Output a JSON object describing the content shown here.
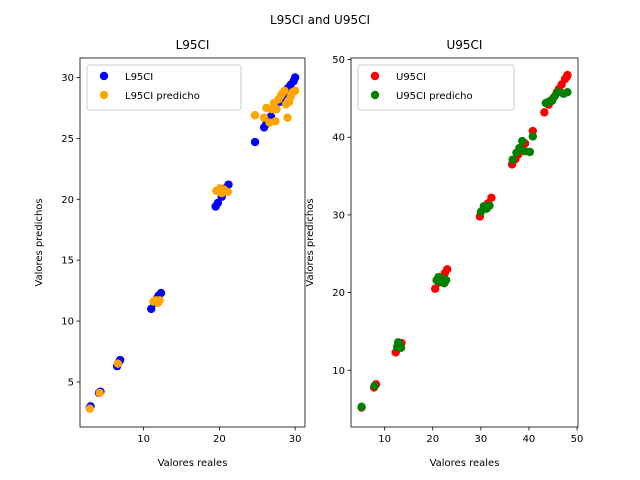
{
  "figure": {
    "suptitle": "L95CI and U95CI"
  },
  "chart_data": [
    {
      "type": "scatter",
      "title": "L95CI",
      "xlabel": "Valores reales",
      "ylabel": "Valores predichos",
      "xlim": [
        1.6,
        31.3
      ],
      "ylim": [
        1.3,
        31.6
      ],
      "xticks": [
        10,
        20,
        30
      ],
      "yticks": [
        5,
        10,
        15,
        20,
        25,
        30
      ],
      "legend_position": "upper-left",
      "series": [
        {
          "name": "L95CI",
          "color": "#0000ff",
          "points": [
            [
              2.9,
              2.9
            ],
            [
              3.0,
              3.0
            ],
            [
              4.1,
              4.1
            ],
            [
              4.3,
              4.2
            ],
            [
              6.5,
              6.3
            ],
            [
              6.9,
              6.8
            ],
            [
              6.7,
              6.6
            ],
            [
              11.0,
              11.0
            ],
            [
              11.4,
              11.5
            ],
            [
              11.8,
              11.9
            ],
            [
              12.3,
              12.3
            ],
            [
              12.0,
              12.1
            ],
            [
              19.5,
              19.4
            ],
            [
              19.8,
              19.7
            ],
            [
              20.3,
              20.2
            ],
            [
              20.8,
              20.9
            ],
            [
              21.2,
              21.2
            ],
            [
              20.5,
              20.6
            ],
            [
              24.7,
              24.7
            ],
            [
              25.9,
              25.9
            ],
            [
              26.2,
              26.2
            ],
            [
              26.8,
              26.8
            ],
            [
              27.5,
              27.4
            ],
            [
              28.0,
              28.0
            ],
            [
              28.5,
              28.6
            ],
            [
              29.0,
              29.1
            ],
            [
              29.4,
              29.4
            ],
            [
              29.8,
              29.7
            ],
            [
              30.0,
              30.0
            ],
            [
              28.2,
              28.4
            ]
          ]
        },
        {
          "name": "L95CI predicho",
          "color": "#ffa500",
          "points": [
            [
              2.9,
              2.8
            ],
            [
              4.2,
              4.1
            ],
            [
              6.6,
              6.5
            ],
            [
              11.3,
              11.6
            ],
            [
              11.6,
              11.7
            ],
            [
              12.1,
              11.7
            ],
            [
              11.9,
              11.5
            ],
            [
              19.6,
              20.7
            ],
            [
              20.1,
              20.9
            ],
            [
              20.6,
              20.8
            ],
            [
              21.1,
              20.6
            ],
            [
              20.3,
              20.5
            ],
            [
              24.7,
              26.9
            ],
            [
              25.9,
              26.7
            ],
            [
              26.2,
              27.5
            ],
            [
              26.6,
              26.3
            ],
            [
              26.9,
              27.4
            ],
            [
              27.2,
              27.9
            ],
            [
              27.5,
              27.4
            ],
            [
              27.8,
              28.2
            ],
            [
              28.1,
              28.5
            ],
            [
              28.3,
              28.7
            ],
            [
              28.6,
              28.9
            ],
            [
              28.8,
              27.8
            ],
            [
              29.0,
              26.7
            ],
            [
              29.2,
              28.0
            ],
            [
              29.4,
              28.4
            ],
            [
              29.7,
              28.8
            ],
            [
              30.0,
              28.9
            ],
            [
              27.4,
              26.4
            ]
          ]
        }
      ]
    },
    {
      "type": "scatter",
      "title": "U95CI",
      "xlabel": "Valores reales",
      "ylabel": "Valores predichos",
      "xlim": [
        3.0,
        50.2
      ],
      "ylim": [
        2.7,
        50.2
      ],
      "xticks": [
        10,
        20,
        30,
        40,
        50
      ],
      "yticks": [
        10,
        20,
        30,
        40,
        50
      ],
      "legend_position": "upper-left",
      "series": [
        {
          "name": "U95CI",
          "color": "#ff0000",
          "points": [
            [
              5.2,
              5.2
            ],
            [
              7.8,
              7.8
            ],
            [
              8.2,
              8.2
            ],
            [
              12.3,
              12.3
            ],
            [
              13.5,
              13.5
            ],
            [
              13.0,
              13.0
            ],
            [
              20.5,
              20.5
            ],
            [
              21.3,
              21.3
            ],
            [
              21.8,
              21.8
            ],
            [
              22.5,
              22.5
            ],
            [
              23.0,
              23.0
            ],
            [
              29.8,
              29.8
            ],
            [
              30.8,
              30.8
            ],
            [
              31.5,
              31.5
            ],
            [
              32.2,
              32.2
            ],
            [
              36.5,
              36.5
            ],
            [
              37.2,
              37.2
            ],
            [
              37.8,
              37.8
            ],
            [
              38.5,
              38.5
            ],
            [
              39.2,
              39.2
            ],
            [
              40.8,
              40.8
            ],
            [
              43.2,
              43.2
            ],
            [
              44.1,
              44.2
            ],
            [
              45.0,
              45.0
            ],
            [
              45.8,
              45.8
            ],
            [
              46.2,
              46.2
            ],
            [
              46.8,
              46.8
            ],
            [
              47.5,
              47.5
            ],
            [
              48.0,
              48.0
            ],
            [
              47.9,
              47.8
            ]
          ]
        },
        {
          "name": "U95CI predicho",
          "color": "#008000",
          "points": [
            [
              5.2,
              5.3
            ],
            [
              7.9,
              8.0
            ],
            [
              12.6,
              13.0
            ],
            [
              13.0,
              13.3
            ],
            [
              13.4,
              12.9
            ],
            [
              12.8,
              13.6
            ],
            [
              20.8,
              21.6
            ],
            [
              21.2,
              22.0
            ],
            [
              21.6,
              21.4
            ],
            [
              22.0,
              21.8
            ],
            [
              22.4,
              21.2
            ],
            [
              22.8,
              21.6
            ],
            [
              30.0,
              30.4
            ],
            [
              30.6,
              31.1
            ],
            [
              31.2,
              30.8
            ],
            [
              31.8,
              31.2
            ],
            [
              36.6,
              37.1
            ],
            [
              37.4,
              38.0
            ],
            [
              38.0,
              38.6
            ],
            [
              38.6,
              39.5
            ],
            [
              39.2,
              38.2
            ],
            [
              40.2,
              38.1
            ],
            [
              40.8,
              40.1
            ],
            [
              43.5,
              44.4
            ],
            [
              44.2,
              44.6
            ],
            [
              44.8,
              44.7
            ],
            [
              45.4,
              45.3
            ],
            [
              46.0,
              45.8
            ],
            [
              47.2,
              45.6
            ],
            [
              48.0,
              45.8
            ]
          ]
        }
      ]
    }
  ]
}
